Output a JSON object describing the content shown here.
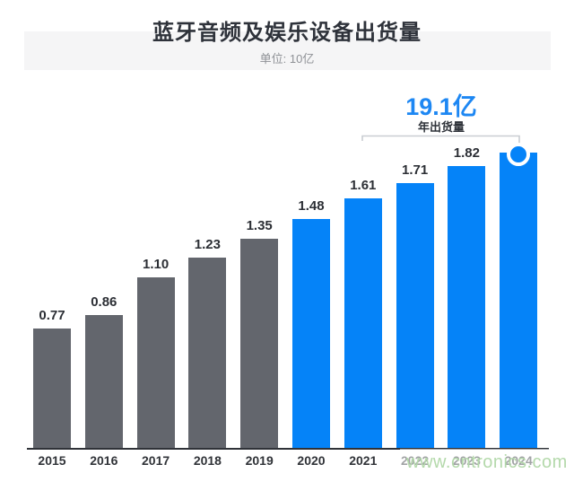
{
  "header": {
    "title": "蓝牙音频及娱乐设备出货量",
    "subtitle": "单位: 10亿"
  },
  "annotation": {
    "value": "19.1亿",
    "label": "年出货量",
    "applies_to": "2024"
  },
  "watermark": {
    "text": "www.cntronics.com",
    "color": "#b4d9ab"
  },
  "chart_data": {
    "type": "bar",
    "title": "蓝牙音频及娱乐设备出货量",
    "unit_label": "单位: 10亿",
    "categories": [
      "2015",
      "2016",
      "2017",
      "2018",
      "2019",
      "2020",
      "2021",
      "2022",
      "2023",
      "2024"
    ],
    "values": [
      0.77,
      0.86,
      1.1,
      1.23,
      1.35,
      1.48,
      1.61,
      1.71,
      1.82,
      1.91
    ],
    "bar_labels": [
      "0.77",
      "0.86",
      "1.10",
      "1.23",
      "1.35",
      "1.48",
      "1.61",
      "1.71",
      "1.82",
      ""
    ],
    "highlight_start_index": 5,
    "colors": {
      "bar_default": "#63666d",
      "bar_highlight": "#0583f8",
      "value_label": "#2c2f35",
      "axis": "#2f3238",
      "annotation_blue": "#1d87f3",
      "bracket": "#c9cdd2"
    },
    "annotation": {
      "value": "19.1亿",
      "label": "年出货量",
      "marker_category": "2024"
    },
    "ylim": [
      0,
      2.0
    ],
    "grid": false,
    "legend": false
  }
}
